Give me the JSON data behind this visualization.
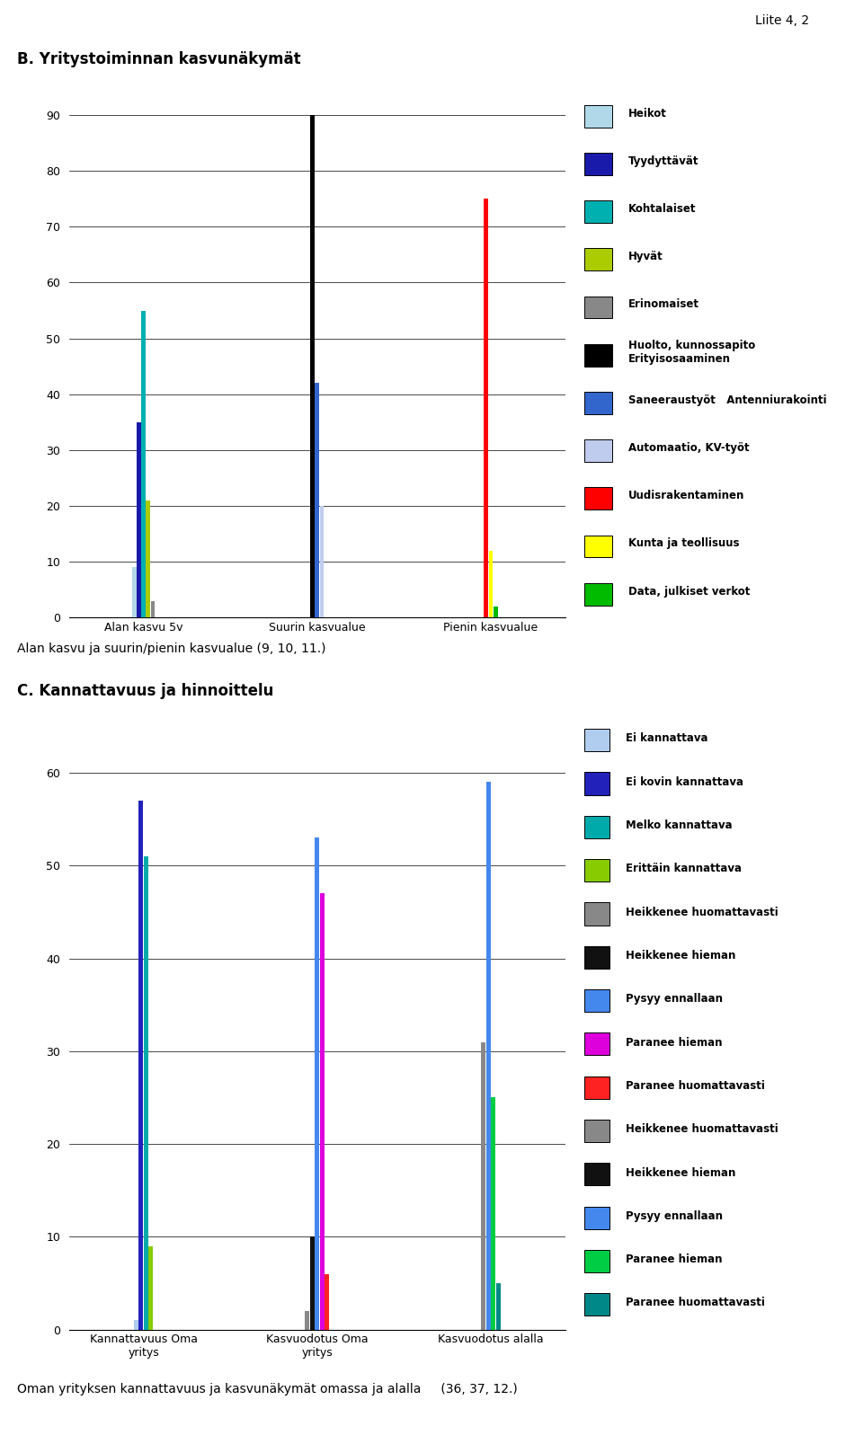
{
  "page_label": "Liite 4, 2",
  "chart_b_title": "B. Yritystoiminnan kasvunäkymät",
  "chart_b_categories": [
    "Alan kasvu 5v",
    "Suurin kasvualue",
    "Pienin kasvualue"
  ],
  "chart_b_legend": [
    "Heikot",
    "Tyydyttävät",
    "Kohtalaiset",
    "Hyvät",
    "Erinomaiset",
    "Huolto, kunnossapito\nErityisosaaminen",
    "Saneeraustyöt   Antenniurakointi",
    "Automaatio, KV-työt",
    "Uudisrakentaminen",
    "Kunta ja teollisuus",
    "Data, julkiset verkot"
  ],
  "chart_b_colors": [
    "#b0d8e8",
    "#1a1aaa",
    "#00b0b0",
    "#aacc00",
    "#888888",
    "#000000",
    "#3366cc",
    "#c0ccee",
    "#ff0000",
    "#ffff00",
    "#00bb00"
  ],
  "chart_b_data": {
    "Alan kasvu 5v": [
      9,
      35,
      55,
      21,
      3,
      0,
      0,
      0,
      0,
      0,
      0
    ],
    "Suurin kasvualue": [
      0,
      0,
      0,
      0,
      0,
      90,
      42,
      20,
      0,
      0,
      0
    ],
    "Pienin kasvualue": [
      0,
      0,
      0,
      0,
      0,
      0,
      0,
      0,
      75,
      12,
      2
    ]
  },
  "chart_b_ylim": [
    0,
    95
  ],
  "chart_b_yticks": [
    0,
    10,
    20,
    30,
    40,
    50,
    60,
    70,
    80,
    90
  ],
  "chart_b_caption": "Alan kasvu ja suurin/pienin kasvualue (9, 10, 11.)",
  "chart_c_title": "C. Kannattavuus ja hinnoittelu",
  "chart_c_categories": [
    "Kannattavuus Oma\nyritys",
    "Kasvuodotus Oma\nyritys",
    "Kasvuodotus alalla"
  ],
  "chart_c_legend": [
    "Ei kannattava",
    "Ei kovin kannattava",
    "Melko kannattava",
    "Erittäin kannattava",
    "Heikkenee huomattavasti",
    "Heikkenee hieman",
    "Pysyy ennallaan",
    "Paranee hieman",
    "Paranee huomattavasti",
    "Heikkenee huomattavasti",
    "Heikkenee hieman",
    "Pysyy ennallaan",
    "Paranee hieman",
    "Paranee huomattavasti"
  ],
  "chart_c_colors": [
    "#b0ccee",
    "#2222bb",
    "#00aaaa",
    "#88cc00",
    "#888888",
    "#111111",
    "#4488ee",
    "#dd00dd",
    "#ff2222",
    "#888888",
    "#111111",
    "#4488ee",
    "#00cc44",
    "#008888"
  ],
  "chart_c_data": {
    "Kannattavuus Oma\nyritys": [
      1,
      57,
      51,
      9,
      0,
      0,
      0,
      0,
      0,
      0,
      0,
      0,
      0,
      0
    ],
    "Kasvuodotus Oma\nyritys": [
      0,
      0,
      0,
      0,
      2,
      10,
      53,
      47,
      6,
      0,
      0,
      0,
      0,
      0
    ],
    "Kasvuodotus alalla": [
      0,
      0,
      0,
      0,
      0,
      0,
      0,
      0,
      0,
      31,
      0,
      59,
      25,
      5
    ]
  },
  "chart_c_ylim": [
    0,
    65
  ],
  "chart_c_yticks": [
    0,
    10,
    20,
    30,
    40,
    50,
    60
  ],
  "chart_c_caption": "Oman yrityksen kannattavuus ja kasvunäkymät omassa ja alalla     (36, 37, 12.)"
}
